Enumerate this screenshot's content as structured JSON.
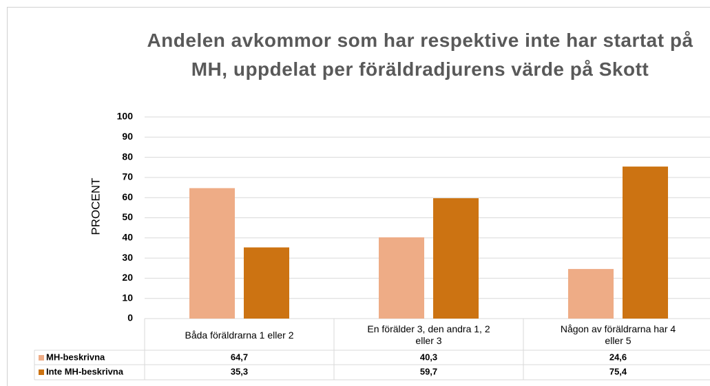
{
  "chart_data": {
    "type": "bar",
    "title": "Andelen avkommor som har respektive inte har startat på MH, uppdelat per föräldradjurens värde på Skott",
    "ylabel": "PROCENT",
    "categories": [
      "Båda föräldrarna 1 eller 2",
      "En förälder 3, den andra 1, 2 eller 3",
      "Någon av föräldrarna har 4 eller 5"
    ],
    "series": [
      {
        "name": "MH-beskrivna",
        "color": "#eeac86",
        "values": [
          64.7,
          40.3,
          24.6
        ],
        "value_labels": [
          "64,7",
          "40,3",
          "24,6"
        ]
      },
      {
        "name": "Inte MH-beskrivna",
        "color": "#cc7312",
        "values": [
          35.3,
          59.7,
          75.4
        ],
        "value_labels": [
          "35,3",
          "59,7",
          "75,4"
        ]
      }
    ],
    "ylim": [
      0,
      100
    ],
    "yticks": [
      0,
      10,
      20,
      30,
      40,
      50,
      60,
      70,
      80,
      90,
      100
    ],
    "grid": true
  }
}
